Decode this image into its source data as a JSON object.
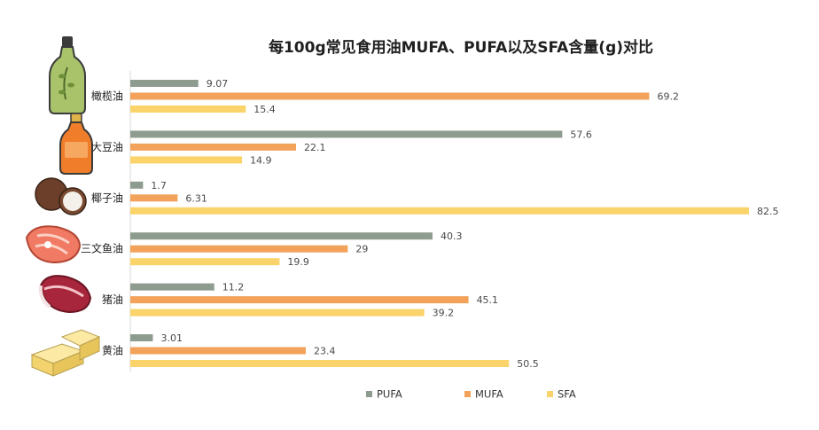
{
  "chart_data": {
    "type": "bar",
    "orientation": "horizontal",
    "title": "每100g常见食用油MUFA、PUFA以及SFA含量(g)对比",
    "categories": [
      "橄榄油",
      "大豆油",
      "椰子油",
      "三文鱼油",
      "猪油",
      "黄油"
    ],
    "series": [
      {
        "name": "PUFA",
        "color": "#8e9c8f",
        "values": [
          9.07,
          57.6,
          1.7,
          40.3,
          11.2,
          3.01
        ]
      },
      {
        "name": "MUFA",
        "color": "#f2a25b",
        "values": [
          69.2,
          22.1,
          6.31,
          29,
          45.1,
          23.4
        ]
      },
      {
        "name": "SFA",
        "color": "#fad36b",
        "values": [
          15.4,
          14.9,
          82.5,
          19.9,
          39.2,
          50.5
        ]
      }
    ],
    "value_labels": [
      [
        "9.07",
        "57.6",
        "1.7",
        "40.3",
        "11.2",
        "3.01"
      ],
      [
        "69.2",
        "22.1",
        "6.31",
        "29",
        "45.1",
        "23.4"
      ],
      [
        "15.4",
        "14.9",
        "82.5",
        "19.9",
        "39.2",
        "50.5"
      ]
    ],
    "xlim": [
      0,
      82.5
    ],
    "grid": false,
    "legend_position": "bottom",
    "icons": [
      "olive-oil-bottle-icon",
      "soybean-oil-bottle-icon",
      "coconut-icon",
      "salmon-steak-icon",
      "pork-meat-icon",
      "butter-icon"
    ]
  }
}
